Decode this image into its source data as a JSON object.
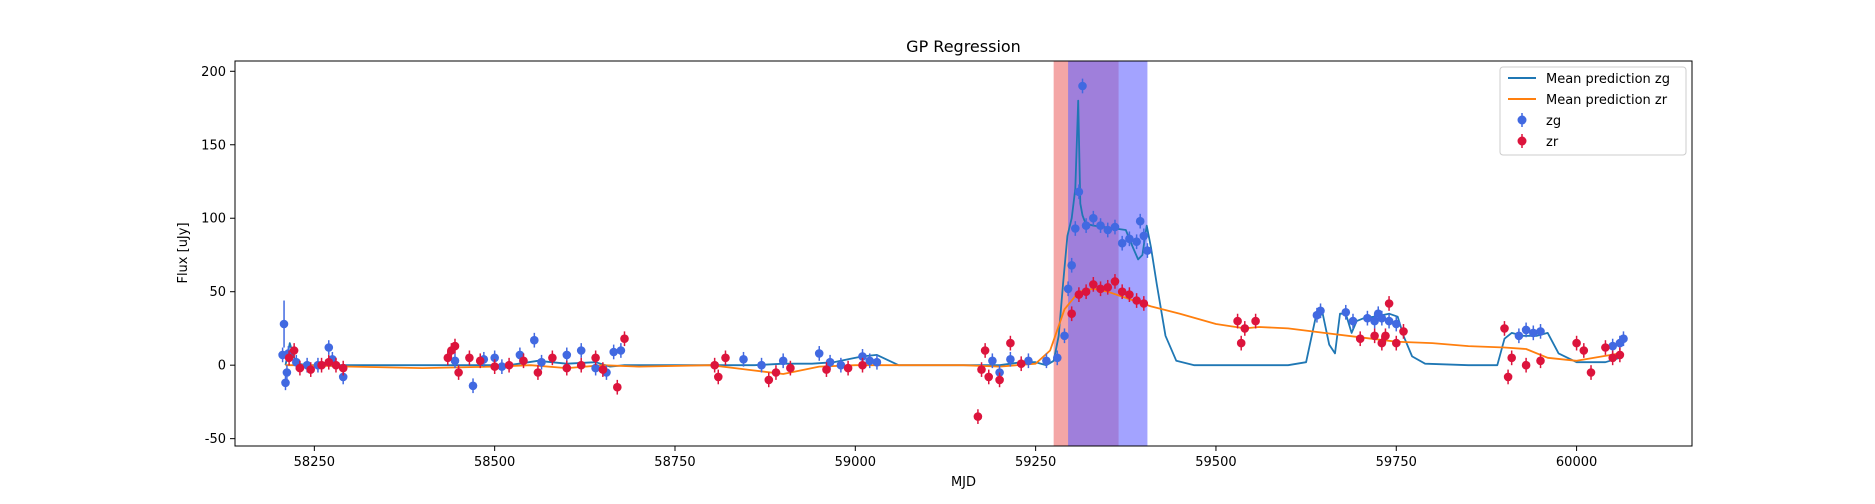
{
  "chart_data": {
    "type": "scatter",
    "title": "GP Regression",
    "xlabel": "MJD",
    "ylabel": "Flux [uJy]",
    "xlim": [
      58140,
      60160
    ],
    "ylim": [
      -55,
      207
    ],
    "xticks": [
      58250,
      58500,
      58750,
      59000,
      59250,
      59500,
      59750,
      60000
    ],
    "yticks": [
      -50,
      0,
      50,
      100,
      150,
      200
    ],
    "grid": false,
    "legend_position": "top-right",
    "colors": {
      "zg_line": "#1f77b4",
      "zr_line": "#ff7f0e",
      "zg_points": "#4169e1",
      "zr_points": "#dc143c",
      "red_band": "#f08080",
      "blue_band": "#6666ff"
    },
    "shaded_regions": [
      {
        "color": "red",
        "x": [
          59275,
          59365
        ]
      },
      {
        "color": "blue",
        "x": [
          59295,
          59405
        ]
      }
    ],
    "series": [
      {
        "name": "Mean prediction zg",
        "kind": "line",
        "x": [
          58210,
          58216,
          58222,
          58228,
          58240,
          58300,
          58420,
          58520,
          58560,
          58600,
          58640,
          58660,
          58680,
          58750,
          58800,
          58830,
          58860,
          58900,
          58940,
          58970,
          58990,
          59010,
          59030,
          59060,
          59150,
          59200,
          59230,
          59250,
          59265,
          59275,
          59282,
          59288,
          59294,
          59300,
          59305,
          59309,
          59312,
          59315,
          59318,
          59322,
          59330,
          59345,
          59360,
          59375,
          59385,
          59392,
          59398,
          59404,
          59410,
          59418,
          59430,
          59445,
          59470,
          59520,
          59600,
          59625,
          59638,
          59648,
          59657,
          59665,
          59672,
          59680,
          59688,
          59695,
          59705,
          59720,
          59740,
          59752,
          59760,
          59772,
          59790,
          59850,
          59890,
          59900,
          59910,
          59925,
          59945,
          59960,
          59975,
          60000,
          60040,
          60060
        ],
        "y": [
          0,
          15,
          5,
          1,
          0,
          0,
          0,
          0,
          3,
          1,
          2,
          -1,
          0,
          0,
          0,
          0,
          0,
          1,
          1,
          2,
          4,
          6,
          7,
          0,
          0,
          0,
          2,
          2,
          0,
          3,
          20,
          55,
          88,
          100,
          120,
          180,
          110,
          102,
          98,
          96,
          95,
          94,
          93,
          92,
          80,
          72,
          75,
          95,
          80,
          55,
          20,
          3,
          0,
          0,
          0,
          2,
          32,
          35,
          14,
          8,
          35,
          35,
          22,
          30,
          32,
          33,
          35,
          33,
          20,
          6,
          1,
          0,
          0,
          18,
          22,
          20,
          20,
          22,
          8,
          2,
          2,
          5
        ]
      },
      {
        "name": "Mean prediction zr",
        "kind": "line",
        "x": [
          58210,
          58240,
          58300,
          58400,
          58500,
          58550,
          58600,
          58650,
          58700,
          58800,
          58850,
          58900,
          58950,
          59000,
          59100,
          59150,
          59200,
          59250,
          59270,
          59290,
          59310,
          59330,
          59350,
          59380,
          59410,
          59450,
          59500,
          59540,
          59560,
          59600,
          59650,
          59700,
          59750,
          59800,
          59850,
          59900,
          59930,
          59960,
          60000,
          60060
        ],
        "y": [
          0,
          0,
          -1,
          -2,
          -1,
          0,
          -2,
          0,
          -1,
          0,
          -3,
          -6,
          -1,
          0,
          0,
          0,
          -1,
          1,
          10,
          38,
          50,
          52,
          50,
          45,
          40,
          35,
          28,
          25,
          26,
          25,
          22,
          19,
          16,
          15,
          13,
          12,
          11,
          5,
          3,
          8
        ]
      },
      {
        "name": "zg",
        "kind": "points",
        "x": [
          58206,
          58208,
          58210,
          58212,
          58214,
          58225,
          58240,
          58255,
          58270,
          58275,
          58290,
          58445,
          58470,
          58485,
          58500,
          58510,
          58535,
          58555,
          58565,
          58600,
          58620,
          58640,
          58655,
          58665,
          58675,
          58845,
          58870,
          58900,
          58950,
          58965,
          58980,
          59010,
          59020,
          59030,
          59190,
          59200,
          59215,
          59240,
          59265,
          59280,
          59290,
          59295,
          59300,
          59305,
          59310,
          59315,
          59320,
          59330,
          59340,
          59350,
          59360,
          59370,
          59380,
          59390,
          59395,
          59400,
          59405,
          59640,
          59645,
          59680,
          59690,
          59710,
          59720,
          59725,
          59730,
          59740,
          59750,
          59920,
          59930,
          59940,
          59950,
          60050,
          60060,
          60065
        ],
        "y": [
          7,
          28,
          -12,
          -5,
          8,
          2,
          0,
          0,
          12,
          4,
          -8,
          3,
          -14,
          4,
          5,
          -1,
          7,
          17,
          2,
          7,
          10,
          -2,
          -5,
          9,
          10,
          4,
          0,
          3,
          8,
          2,
          0,
          6,
          3,
          2,
          3,
          -5,
          4,
          3,
          3,
          5,
          20,
          52,
          68,
          93,
          118,
          190,
          95,
          100,
          95,
          92,
          94,
          83,
          86,
          84,
          98,
          88,
          78,
          34,
          37,
          36,
          30,
          32,
          30,
          35,
          32,
          30,
          28,
          20,
          24,
          22,
          23,
          13,
          15,
          18
        ]
      },
      {
        "name": "zr",
        "kind": "points",
        "x": [
          58215,
          58222,
          58230,
          58245,
          58260,
          58270,
          58280,
          58290,
          58435,
          58440,
          58445,
          58450,
          58465,
          58480,
          58500,
          58520,
          58540,
          58560,
          58580,
          58600,
          58620,
          58640,
          58650,
          58670,
          58680,
          58805,
          58810,
          58820,
          58880,
          58890,
          58910,
          58960,
          58990,
          59010,
          59170,
          59175,
          59180,
          59185,
          59200,
          59215,
          59230,
          59300,
          59310,
          59320,
          59330,
          59340,
          59350,
          59360,
          59370,
          59380,
          59390,
          59400,
          59530,
          59535,
          59540,
          59555,
          59700,
          59720,
          59730,
          59735,
          59740,
          59750,
          59760,
          59900,
          59905,
          59910,
          59930,
          59950,
          60000,
          60010,
          60020,
          60040,
          60050,
          60060
        ],
        "y": [
          5,
          10,
          -2,
          -3,
          0,
          2,
          0,
          -2,
          5,
          10,
          13,
          -5,
          5,
          3,
          -1,
          0,
          3,
          -5,
          5,
          -2,
          0,
          5,
          -3,
          -15,
          18,
          0,
          -8,
          5,
          -10,
          -5,
          -2,
          -3,
          -2,
          0,
          -35,
          -3,
          10,
          -8,
          -10,
          15,
          1,
          35,
          48,
          50,
          55,
          52,
          53,
          57,
          50,
          48,
          44,
          42,
          30,
          15,
          25,
          30,
          18,
          20,
          15,
          20,
          42,
          15,
          23,
          25,
          -8,
          5,
          0,
          3,
          15,
          10,
          -5,
          12,
          5,
          7
        ]
      }
    ]
  }
}
